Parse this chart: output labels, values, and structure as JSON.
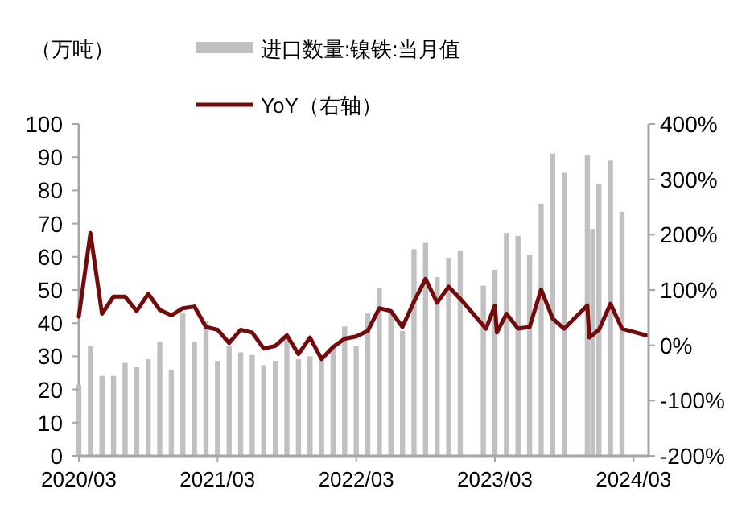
{
  "chart_data": {
    "type": "bar",
    "ylabel": "（万吨）",
    "legend": "top",
    "xlim": [
      "2020-03",
      "2024-04-10"
    ],
    "xticks": [
      {
        "value": "2020-03",
        "label": "2020/03"
      },
      {
        "value": "2021-03",
        "label": "2021/03"
      },
      {
        "value": "2022-03",
        "label": "2022/03"
      },
      {
        "value": "2023-03",
        "label": "2023/03"
      },
      {
        "value": "2024-03",
        "label": "2024/03"
      }
    ],
    "ylim": [
      0,
      100
    ],
    "yticks": [
      0,
      10,
      20,
      30,
      40,
      50,
      60,
      70,
      80,
      90,
      100
    ],
    "y2lim": [
      -200,
      400
    ],
    "y2ticks": [
      {
        "value": -200,
        "label": "-200%"
      },
      {
        "value": -100,
        "label": "-100%"
      },
      {
        "value": 0,
        "label": "0%"
      },
      {
        "value": 100,
        "label": "100%"
      },
      {
        "value": 200,
        "label": "200%"
      },
      {
        "value": 300,
        "label": "300%"
      },
      {
        "value": 400,
        "label": "400%"
      }
    ],
    "series": [
      {
        "name": "进口数量:镍铁:当月值",
        "color": "#c0c0c0",
        "x": [
          "2020-03",
          "2020-04",
          "2020-05",
          "2020-06",
          "2020-07",
          "2020-08",
          "2020-09",
          "2020-10",
          "2020-11",
          "2020-12",
          "2021-01",
          "2021-02",
          "2021-03",
          "2021-04",
          "2021-05",
          "2021-06",
          "2021-07",
          "2021-08",
          "2021-09",
          "2021-10",
          "2021-11",
          "2021-12",
          "2022-01",
          "2022-02",
          "2022-03",
          "2022-04",
          "2022-05",
          "2022-06",
          "2022-07",
          "2022-08",
          "2022-09",
          "2022-10",
          "2022-11",
          "2022-12",
          "2023-02",
          "2023-03",
          "2023-04",
          "2023-05",
          "2023-06",
          "2023-07",
          "2023-08",
          "2023-09",
          "2023-11",
          "2023-11-15",
          "2023-12",
          "2024-01",
          "2024-02"
        ],
        "values": [
          21.4,
          33.2,
          24.1,
          24.1,
          28,
          26.7,
          29.1,
          34.5,
          26,
          42.9,
          34.5,
          40.5,
          28.6,
          33,
          31.2,
          30.4,
          27.3,
          28.6,
          35,
          29.1,
          30,
          30,
          33,
          39,
          33.2,
          42.9,
          50.6,
          44,
          37.7,
          62.3,
          64.2,
          53.9,
          59.7,
          61.7,
          51.3,
          56.1,
          67.2,
          66.3,
          60.7,
          76,
          91.1,
          85.3,
          90.6,
          68.4,
          82,
          89,
          73.6
        ]
      },
      {
        "name": "YoY（右轴）",
        "type": "line",
        "axis": "y2",
        "color": "#760a0a",
        "x": [
          "2020-03",
          "2020-04",
          "2020-05",
          "2020-06",
          "2020-07",
          "2020-08",
          "2020-09",
          "2020-10",
          "2020-11",
          "2020-12",
          "2021-01",
          "2021-02",
          "2021-03",
          "2021-04",
          "2021-05",
          "2021-06",
          "2021-07",
          "2021-08",
          "2021-09",
          "2021-10",
          "2021-11",
          "2021-12",
          "2022-01",
          "2022-02",
          "2022-03",
          "2022-04",
          "2022-05",
          "2022-06",
          "2022-07",
          "2022-08",
          "2022-09",
          "2022-10",
          "2022-11",
          "2022-12",
          "2023-02-08",
          "2023-03",
          "2023-03-06",
          "2023-04",
          "2023-05",
          "2023-06",
          "2023-07",
          "2023-08",
          "2023-09",
          "2023-11",
          "2023-11-06",
          "2023-12",
          "2024-01",
          "2024-02",
          "2024-04-04"
        ],
        "values": [
          52,
          203,
          57,
          88,
          88,
          62,
          93,
          64,
          54,
          67,
          70,
          33,
          28,
          4,
          28,
          23,
          -6,
          -1,
          18,
          -16,
          14,
          -25,
          -3,
          12,
          16,
          26,
          67,
          62,
          33,
          79,
          120,
          77,
          106,
          84,
          30,
          72,
          23,
          57,
          30,
          33,
          101,
          48,
          30,
          72,
          14,
          28,
          75,
          30,
          18
        ]
      }
    ]
  }
}
